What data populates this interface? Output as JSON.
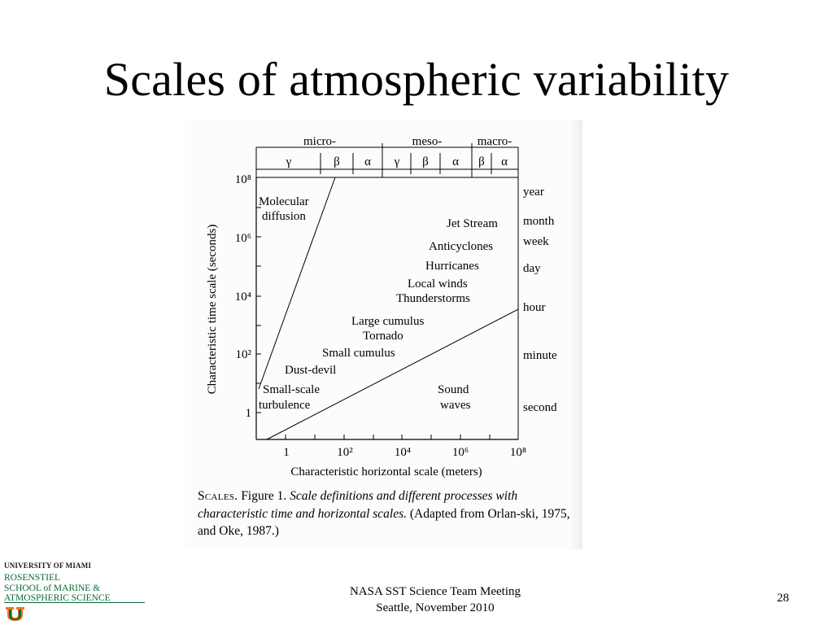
{
  "slide": {
    "title": "Scales of atmospheric variability",
    "footer_meeting_line1": "NASA SST Science Team Meeting",
    "footer_meeting_line2": "Seattle, November 2010",
    "page_number": "28"
  },
  "logo": {
    "line1": "UNIVERSITY OF MIAMI",
    "line2": "ROSENSTIEL",
    "line3": "SCHOOL of MARINE &",
    "line4": "ATMOSPHERIC SCIENCE",
    "colors": {
      "green": "#0a6a3a",
      "orange": "#f47321"
    }
  },
  "figure": {
    "scale_groups": [
      "micro-",
      "meso-",
      "macro-"
    ],
    "sub_scales": [
      "γ",
      "β",
      "α",
      "γ",
      "β",
      "α",
      "β",
      "α"
    ],
    "y_ticks": [
      "10⁸",
      "10⁶",
      "10⁴",
      "10²",
      "1"
    ],
    "x_ticks": [
      "1",
      "10²",
      "10⁴",
      "10⁶",
      "10⁸"
    ],
    "right_labels": [
      "year",
      "month",
      "week",
      "day",
      "hour",
      "minute",
      "second"
    ],
    "y_axis_label": "Characteristic time scale (seconds)",
    "x_axis_label": "Characteristic horizontal scale (meters)",
    "phenomena": {
      "molecular_1": "Molecular",
      "molecular_2": "diffusion",
      "jet_stream": "Jet Stream",
      "anticyclones": "Anticyclones",
      "hurricanes": "Hurricanes",
      "local_winds": "Local winds",
      "thunderstorms": "Thunderstorms",
      "large_cumulus": "Large cumulus",
      "tornado": "Tornado",
      "small_cumulus": "Small cumulus",
      "dust_devil": "Dust-devil",
      "small_scale": "Small-scale",
      "turbulence": "turbulence",
      "sound": "Sound",
      "waves": "waves"
    },
    "caption": {
      "head": "Scales.",
      "fig": "Figure 1.",
      "italic": "Scale definitions and different processes with characteristic time and horizontal scales.",
      "rest": "(Adapted from Orlan-ski, 1975, and Oke, 1987.)"
    }
  }
}
